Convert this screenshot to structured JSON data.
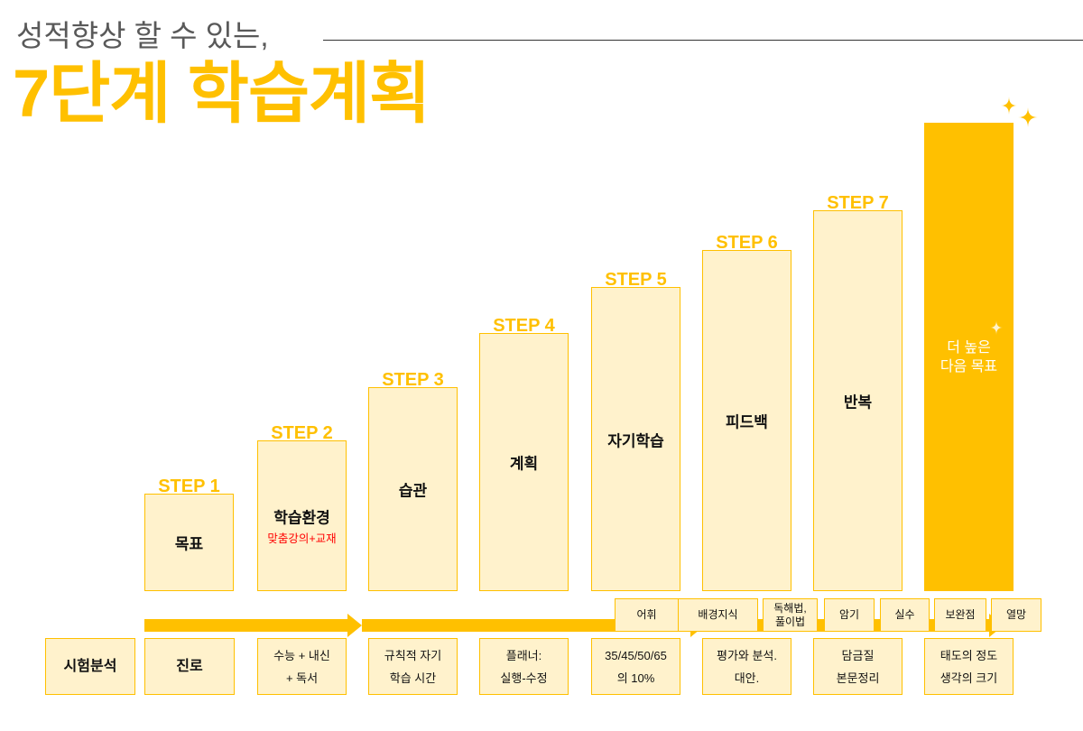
{
  "header": {
    "subtitle": "성적향상 할 수 있는,",
    "title": "7단계 학습계획"
  },
  "colors": {
    "accent": "#FFC000",
    "light_fill": "#FFF2CC",
    "note": "#FF0000",
    "subtitle": "#595959"
  },
  "icons": {
    "sparkle": "sparkle-icon",
    "arrow": "right-arrow-icon"
  },
  "steps": [
    {
      "step": "STEP 1",
      "label": "목표"
    },
    {
      "step": "STEP 2",
      "label": "학습환경",
      "note": "맞춤강의+교재"
    },
    {
      "step": "STEP 3",
      "label": "습관"
    },
    {
      "step": "STEP 4",
      "label": "계획"
    },
    {
      "step": "STEP 5",
      "label": "자기학습"
    },
    {
      "step": "STEP 6",
      "label": "피드백"
    },
    {
      "step": "STEP 7",
      "label": "반복"
    }
  ],
  "goal": {
    "lines": [
      "더 높은",
      "다음 목표"
    ]
  },
  "keywords": [
    {
      "lines": [
        "어휘"
      ]
    },
    {
      "lines": [
        "배경지식"
      ]
    },
    {
      "lines": [
        "독해법,",
        "풀이법"
      ]
    },
    {
      "lines": [
        "암기"
      ]
    },
    {
      "lines": [
        "실수"
      ]
    },
    {
      "lines": [
        "보완점"
      ]
    },
    {
      "lines": [
        "열망"
      ]
    }
  ],
  "details": [
    {
      "lines": [
        "시험분석"
      ]
    },
    {
      "lines": [
        "진로"
      ]
    },
    {
      "lines": [
        "수능 + 내신",
        "+ 독서"
      ]
    },
    {
      "lines": [
        "규칙적 자기",
        "학습 시간"
      ]
    },
    {
      "lines": [
        "플래너:",
        "실행-수정"
      ]
    },
    {
      "lines": [
        "35/45/50/65",
        "의 10%"
      ]
    },
    {
      "lines": [
        "평가와 분석.",
        "대안."
      ]
    },
    {
      "lines": [
        "담금질",
        "본문정리"
      ]
    },
    {
      "lines": [
        "태도의 정도",
        "생각의 크기"
      ]
    }
  ]
}
